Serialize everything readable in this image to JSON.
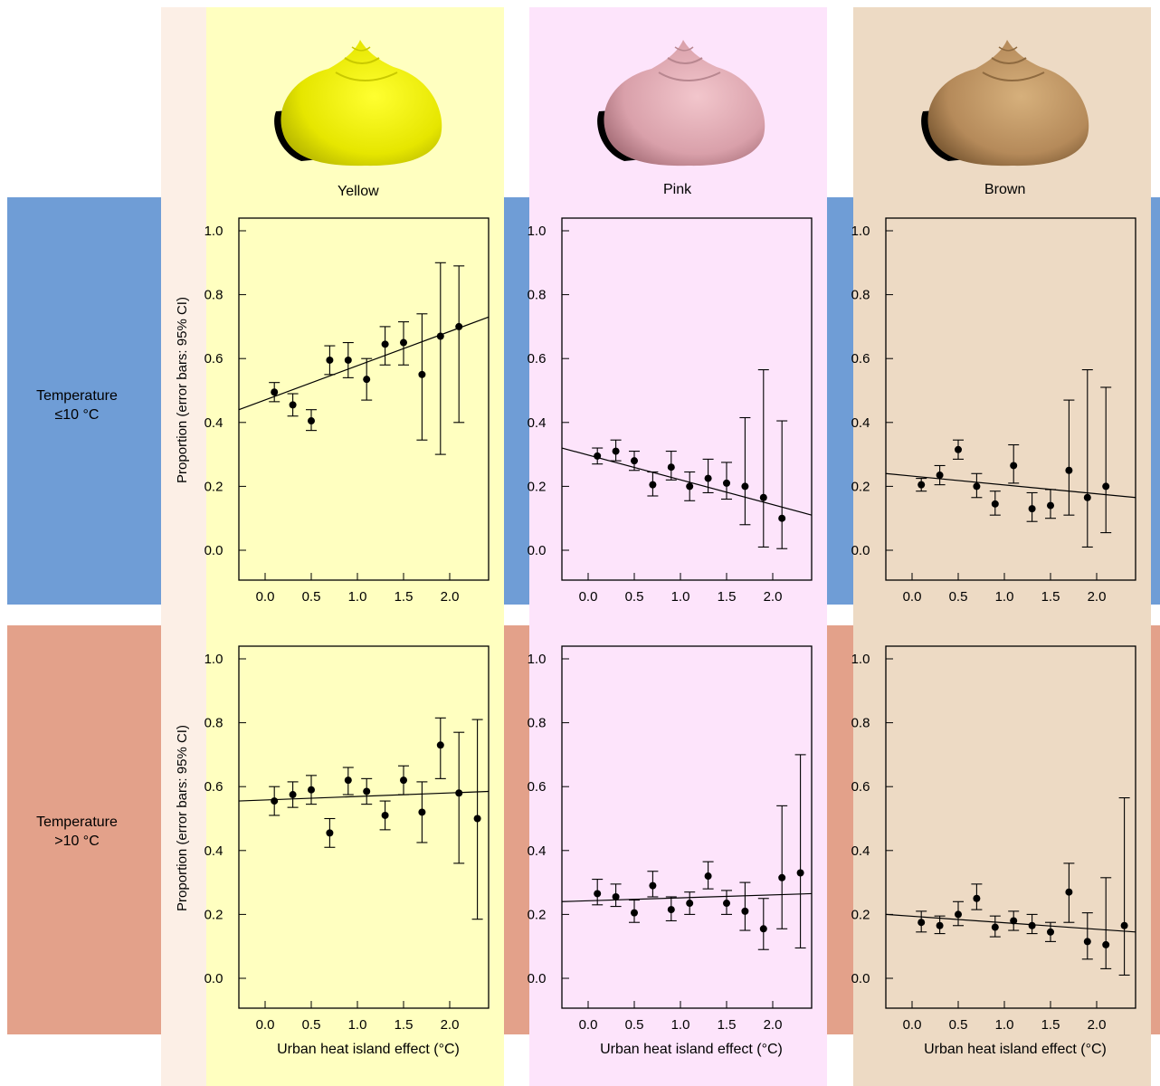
{
  "colors": {
    "cold_band": "#6f9dd6",
    "warm_band": "#e3a18a",
    "left_strip": "#fcefe6",
    "yellow_bg": "#ffffc0",
    "pink_bg": "#fde4fb",
    "brown_bg": "#eddac4"
  },
  "rows": [
    {
      "line1": "Temperature",
      "line2": "≤10 °C"
    },
    {
      "line1": "Temperature",
      "line2": ">10 °C"
    }
  ],
  "columns": [
    {
      "label": "Yellow",
      "shell_color": "#e6e600"
    },
    {
      "label": "Pink",
      "shell_color": "#d9a0aa"
    },
    {
      "label": "Brown",
      "shell_color": "#b58a5a"
    }
  ],
  "ylabel": "Proportion (error bars: 95% CI)",
  "xlabel": "Urban heat island effect (°C)",
  "chart_data": [
    {
      "type": "scatter",
      "row": 0,
      "col": 0,
      "xlim": [
        0,
        2.5
      ],
      "ylim": [
        0,
        1
      ],
      "xticks": [
        "0.0",
        "0.5",
        "1.0",
        "1.5",
        "2.0"
      ],
      "yticks": [
        "0.0",
        "0.2",
        "0.4",
        "0.6",
        "0.8",
        "1.0"
      ],
      "x": [
        0.1,
        0.3,
        0.5,
        0.7,
        0.9,
        1.1,
        1.3,
        1.5,
        1.7,
        1.9,
        2.1
      ],
      "y": [
        0.495,
        0.455,
        0.405,
        0.595,
        0.595,
        0.535,
        0.645,
        0.65,
        0.55,
        0.67,
        0.7
      ],
      "lo": [
        0.465,
        0.42,
        0.375,
        0.55,
        0.54,
        0.47,
        0.58,
        0.58,
        0.345,
        0.3,
        0.4
      ],
      "hi": [
        0.525,
        0.49,
        0.44,
        0.64,
        0.65,
        0.6,
        0.7,
        0.715,
        0.74,
        0.9,
        0.89
      ],
      "fit": [
        0.44,
        0.73
      ]
    },
    {
      "type": "scatter",
      "row": 0,
      "col": 1,
      "xlim": [
        0,
        2.5
      ],
      "ylim": [
        0,
        1
      ],
      "xticks": [
        "0.0",
        "0.5",
        "1.0",
        "1.5",
        "2.0"
      ],
      "yticks": [
        "0.0",
        "0.2",
        "0.4",
        "0.6",
        "0.8",
        "1.0"
      ],
      "x": [
        0.1,
        0.3,
        0.5,
        0.7,
        0.9,
        1.1,
        1.3,
        1.5,
        1.7,
        1.9,
        2.1
      ],
      "y": [
        0.295,
        0.31,
        0.28,
        0.205,
        0.26,
        0.2,
        0.225,
        0.21,
        0.2,
        0.165,
        0.1
      ],
      "lo": [
        0.27,
        0.28,
        0.25,
        0.17,
        0.22,
        0.155,
        0.18,
        0.16,
        0.08,
        0.01,
        0.005
      ],
      "hi": [
        0.32,
        0.345,
        0.31,
        0.245,
        0.31,
        0.245,
        0.285,
        0.275,
        0.415,
        0.565,
        0.405
      ],
      "fit": [
        0.32,
        0.11
      ]
    },
    {
      "type": "scatter",
      "row": 0,
      "col": 2,
      "xlim": [
        0,
        2.5
      ],
      "ylim": [
        0,
        1
      ],
      "xticks": [
        "0.0",
        "0.5",
        "1.0",
        "1.5",
        "2.0"
      ],
      "yticks": [
        "0.0",
        "0.2",
        "0.4",
        "0.6",
        "0.8",
        "1.0"
      ],
      "x": [
        0.1,
        0.3,
        0.5,
        0.7,
        0.9,
        1.1,
        1.3,
        1.5,
        1.7,
        1.9,
        2.1
      ],
      "y": [
        0.205,
        0.235,
        0.315,
        0.2,
        0.145,
        0.265,
        0.13,
        0.14,
        0.25,
        0.165,
        0.2
      ],
      "lo": [
        0.185,
        0.205,
        0.285,
        0.165,
        0.11,
        0.21,
        0.09,
        0.1,
        0.11,
        0.01,
        0.055
      ],
      "hi": [
        0.225,
        0.265,
        0.345,
        0.24,
        0.185,
        0.33,
        0.18,
        0.19,
        0.47,
        0.565,
        0.51
      ],
      "fit": [
        0.24,
        0.165
      ]
    },
    {
      "type": "scatter",
      "row": 1,
      "col": 0,
      "xlim": [
        0,
        2.5
      ],
      "ylim": [
        0,
        1
      ],
      "xticks": [
        "0.0",
        "0.5",
        "1.0",
        "1.5",
        "2.0"
      ],
      "yticks": [
        "0.0",
        "0.2",
        "0.4",
        "0.6",
        "0.8",
        "1.0"
      ],
      "x": [
        0.1,
        0.3,
        0.5,
        0.7,
        0.9,
        1.1,
        1.3,
        1.5,
        1.7,
        1.9,
        2.1,
        2.3
      ],
      "y": [
        0.555,
        0.575,
        0.59,
        0.455,
        0.62,
        0.585,
        0.51,
        0.62,
        0.52,
        0.73,
        0.58,
        0.5
      ],
      "lo": [
        0.51,
        0.535,
        0.545,
        0.41,
        0.575,
        0.545,
        0.465,
        0.575,
        0.425,
        0.625,
        0.36,
        0.185
      ],
      "hi": [
        0.6,
        0.615,
        0.635,
        0.5,
        0.66,
        0.625,
        0.555,
        0.665,
        0.615,
        0.815,
        0.77,
        0.81
      ],
      "fit": [
        0.555,
        0.585
      ]
    },
    {
      "type": "scatter",
      "row": 1,
      "col": 1,
      "xlim": [
        0,
        2.5
      ],
      "ylim": [
        0,
        1
      ],
      "xticks": [
        "0.0",
        "0.5",
        "1.0",
        "1.5",
        "2.0"
      ],
      "yticks": [
        "0.0",
        "0.2",
        "0.4",
        "0.6",
        "0.8",
        "1.0"
      ],
      "x": [
        0.1,
        0.3,
        0.5,
        0.7,
        0.9,
        1.1,
        1.3,
        1.5,
        1.7,
        1.9,
        2.1,
        2.3
      ],
      "y": [
        0.265,
        0.255,
        0.205,
        0.29,
        0.215,
        0.235,
        0.32,
        0.235,
        0.21,
        0.155,
        0.315,
        0.33
      ],
      "lo": [
        0.23,
        0.225,
        0.175,
        0.255,
        0.18,
        0.2,
        0.28,
        0.2,
        0.15,
        0.09,
        0.155,
        0.095
      ],
      "hi": [
        0.31,
        0.295,
        0.245,
        0.335,
        0.255,
        0.27,
        0.365,
        0.275,
        0.3,
        0.25,
        0.54,
        0.7
      ],
      "fit": [
        0.24,
        0.265
      ]
    },
    {
      "type": "scatter",
      "row": 1,
      "col": 2,
      "xlim": [
        0,
        2.5
      ],
      "ylim": [
        0,
        1
      ],
      "xticks": [
        "0.0",
        "0.5",
        "1.0",
        "1.5",
        "2.0"
      ],
      "yticks": [
        "0.0",
        "0.2",
        "0.4",
        "0.6",
        "0.8",
        "1.0"
      ],
      "x": [
        0.1,
        0.3,
        0.5,
        0.7,
        0.9,
        1.1,
        1.3,
        1.5,
        1.7,
        1.9,
        2.1,
        2.3
      ],
      "y": [
        0.175,
        0.165,
        0.2,
        0.25,
        0.16,
        0.18,
        0.165,
        0.145,
        0.27,
        0.115,
        0.105,
        0.165
      ],
      "lo": [
        0.145,
        0.14,
        0.165,
        0.215,
        0.13,
        0.15,
        0.14,
        0.115,
        0.175,
        0.06,
        0.03,
        0.01
      ],
      "hi": [
        0.21,
        0.195,
        0.24,
        0.295,
        0.195,
        0.21,
        0.2,
        0.175,
        0.36,
        0.205,
        0.315,
        0.565
      ],
      "fit": [
        0.2,
        0.145
      ]
    }
  ]
}
